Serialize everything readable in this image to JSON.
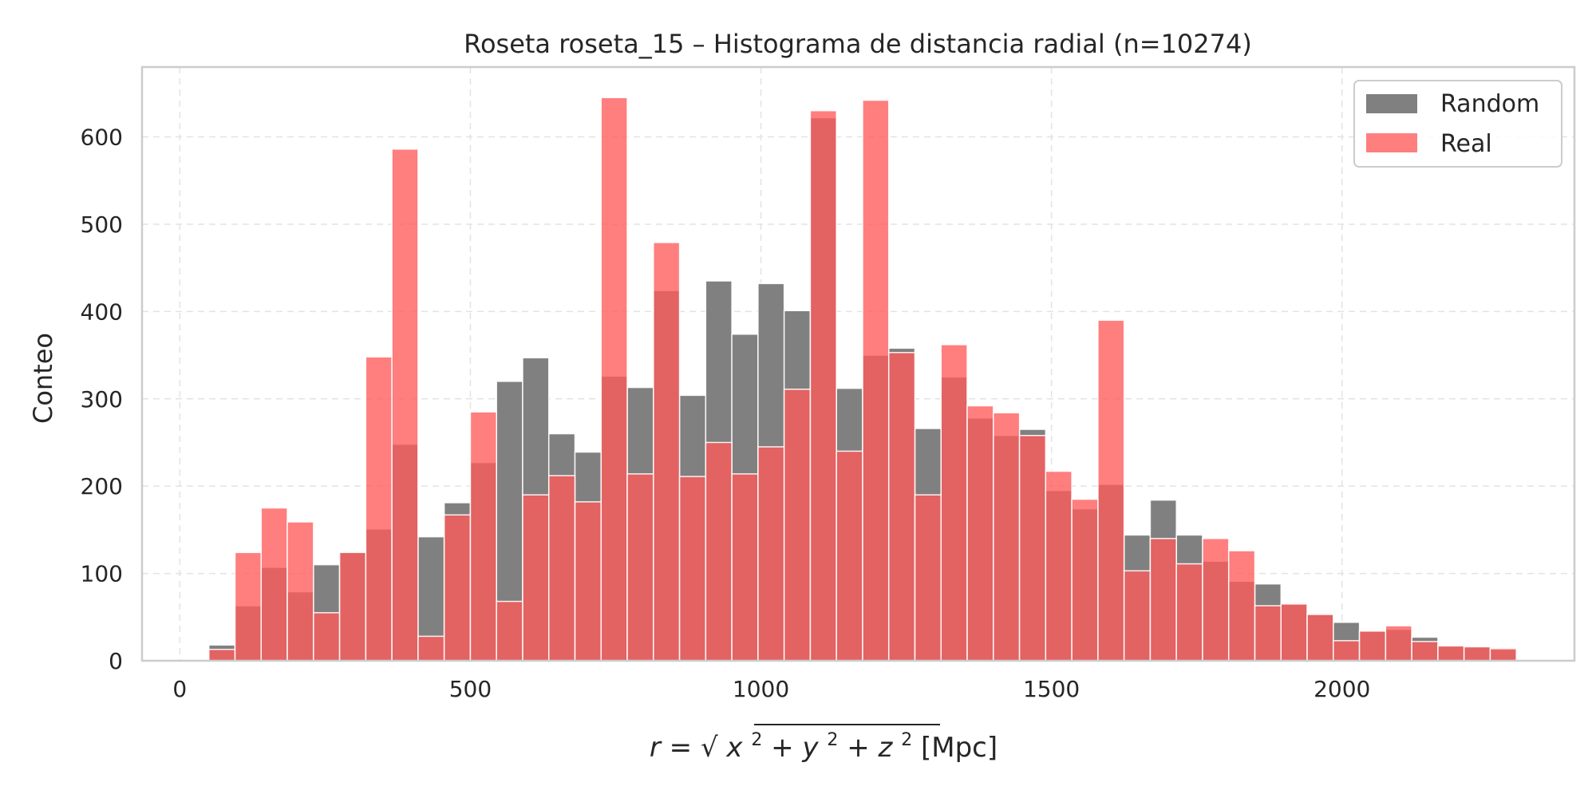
{
  "chart_data": {
    "type": "bar",
    "title": "Roseta roseta_15 – Histograma de distancia radial (n=10274)",
    "xlabel": {
      "prefix": "r = ",
      "radicand_vars": [
        "x",
        "y",
        "z"
      ],
      "exponent": "2",
      "plus": "+",
      "suffix": "[Mpc]"
    },
    "ylabel": "Conteo",
    "xlim": [
      -65,
      2400
    ],
    "ylim": [
      0,
      680
    ],
    "xticks": [
      0,
      500,
      1000,
      1500,
      2000
    ],
    "yticks": [
      0,
      100,
      200,
      300,
      400,
      500,
      600
    ],
    "grid": true,
    "legend": "top-right",
    "bin_start": 50,
    "bin_width": 45,
    "series": [
      {
        "name": "Random",
        "color": "#808080",
        "values": [
          18,
          63,
          107,
          79,
          110,
          125,
          151,
          248,
          142,
          181,
          227,
          320,
          347,
          260,
          239,
          326,
          313,
          424,
          304,
          435,
          374,
          432,
          401,
          622,
          312,
          350,
          358,
          266,
          325,
          278,
          258,
          265,
          195,
          174,
          202,
          144,
          184,
          144,
          114,
          91,
          88,
          66,
          54,
          44,
          34,
          36,
          27,
          17,
          16,
          13
        ]
      },
      {
        "name": "Real",
        "color": "#ff5a5a",
        "values": [
          13,
          124,
          175,
          159,
          55,
          124,
          348,
          586,
          28,
          167,
          285,
          68,
          190,
          212,
          182,
          645,
          214,
          479,
          211,
          250,
          214,
          245,
          311,
          630,
          240,
          642,
          353,
          190,
          362,
          292,
          284,
          258,
          217,
          185,
          390,
          103,
          140,
          111,
          140,
          126,
          63,
          65,
          53,
          23,
          34,
          40,
          22,
          17,
          16,
          14
        ]
      }
    ]
  }
}
